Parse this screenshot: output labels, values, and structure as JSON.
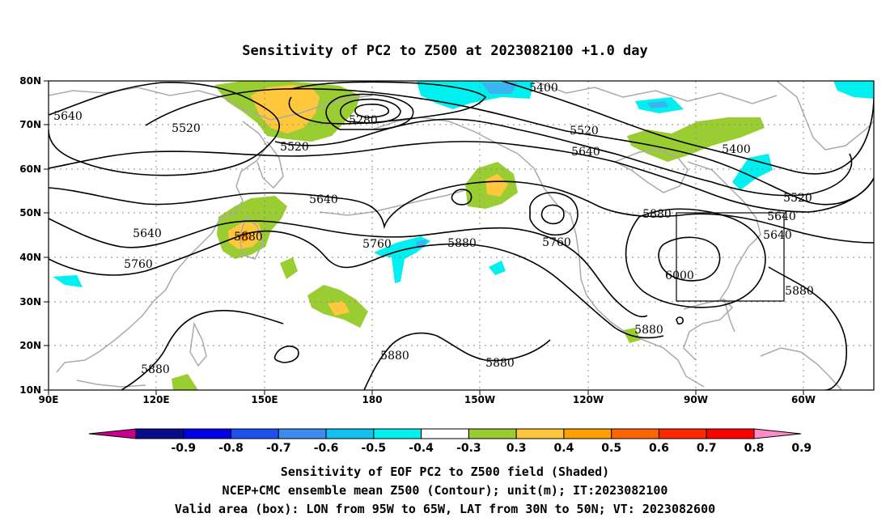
{
  "title": "Sensitivity of PC2 to Z500 at 2023082100 +1.0 day",
  "lon_labels": [
    "90E",
    "120E",
    "150E",
    "180",
    "150W",
    "120W",
    "90W",
    "60W"
  ],
  "lat_labels": [
    "80N",
    "70N",
    "60N",
    "50N",
    "40N",
    "30N",
    "20N",
    "10N"
  ],
  "contour_labels": [
    "5640",
    "5520",
    "5280",
    "5400",
    "5520",
    "5520",
    "5640",
    "5400",
    "5520",
    "5640",
    "5640",
    "5640",
    "5880",
    "5760",
    "5880",
    "5760",
    "5880",
    "5640",
    "5760",
    "6000",
    "5880",
    "5880",
    "5880",
    "5880",
    "5880"
  ],
  "colorbar": {
    "labels": [
      "-0.9",
      "-0.8",
      "-0.7",
      "-0.6",
      "-0.5",
      "-0.4",
      "-0.3",
      "0.3",
      "0.4",
      "0.5",
      "0.6",
      "0.7",
      "0.8",
      "0.9"
    ],
    "colors": [
      "#c8008c",
      "#0a0a8c",
      "#0000e6",
      "#1e50f0",
      "#3c8cf0",
      "#14c0f0",
      "#00f0f0",
      "#ffffff",
      "#9acd32",
      "#ffc83c",
      "#ffa000",
      "#ff6400",
      "#ff2800",
      "#ff0000",
      "#ff8cc8"
    ]
  },
  "captions": [
    "Sensitivity of EOF PC2 to Z500 field (Shaded)",
    "NCEP+CMC ensemble mean Z500 (Contour); unit(m); IT:2023082100",
    "Valid area (box): LON from 95W to 65W, LAT from 30N to 50N; VT: 2023082600"
  ]
}
